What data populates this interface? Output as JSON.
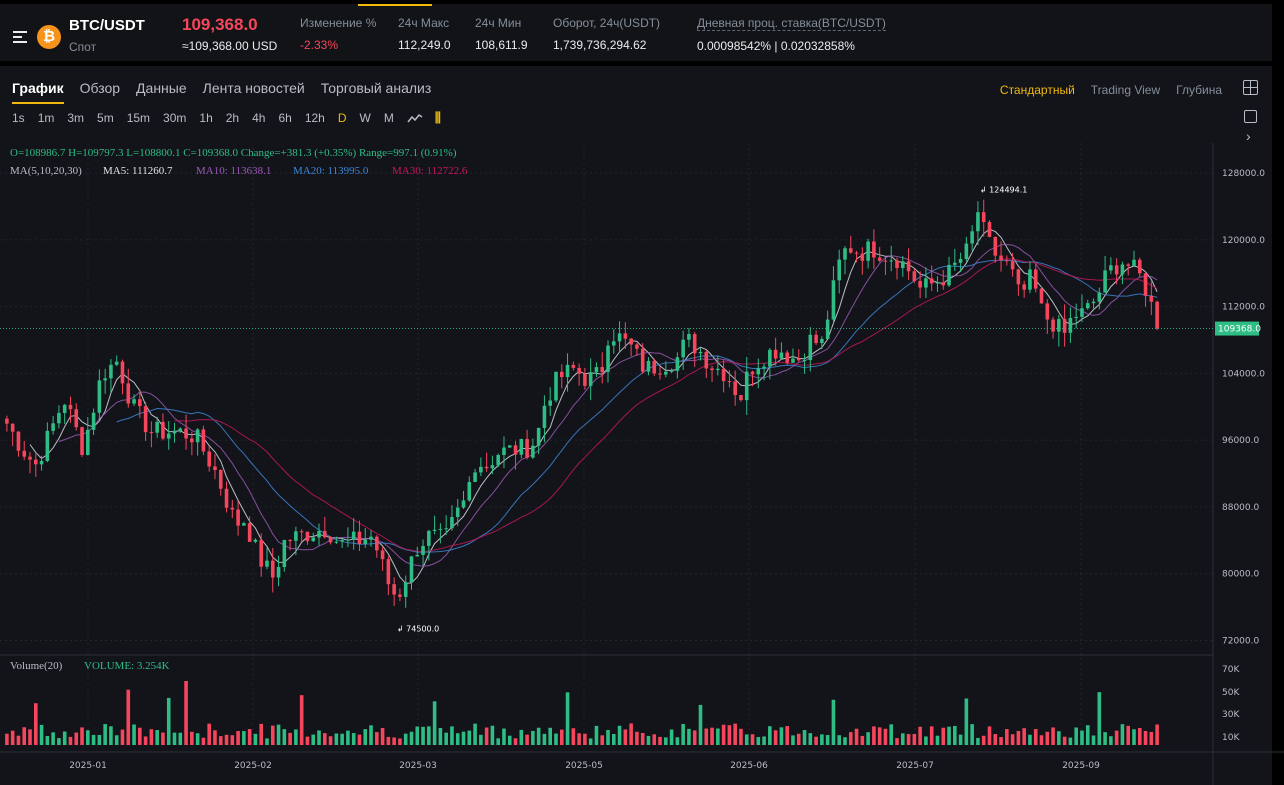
{
  "header": {
    "pair": "BTC/USDT",
    "market": "Спот",
    "last_price": "109,368.0",
    "last_price_usd": "≈109,368.00 USD",
    "stats": [
      {
        "label": "Изменение %",
        "value": "-2.33%",
        "negative": true
      },
      {
        "label": "24ч Макс",
        "value": "112,249.0"
      },
      {
        "label": "24ч Мин",
        "value": "108,611.9"
      },
      {
        "label": "Оборот, 24ч(USDT)",
        "value": "1,739,736,294.62"
      },
      {
        "label": "Дневная проц. ставка(BTC/USDT)",
        "value": "0.00098542% | 0.02032858%"
      }
    ],
    "coin_icon": "bitcoin-icon",
    "menu_icon": "menu-icon"
  },
  "tabs": [
    "График",
    "Обзор",
    "Данные",
    "Лента новостей",
    "Торговый анализ"
  ],
  "active_tab": "График",
  "views": [
    "Стандартный",
    "Trading View",
    "Глубина"
  ],
  "active_view": "Стандартный",
  "intervals": [
    "1s",
    "1m",
    "3m",
    "5m",
    "15m",
    "30m",
    "1h",
    "2h",
    "4h",
    "6h",
    "12h",
    "D",
    "W",
    "M"
  ],
  "active_interval": "D",
  "legend": {
    "ohlc": "O=108986.7   H=109797.3   L=108800.1   C=109368.0   Change=+381.3 (+0.35%)   Range=997.1 (0.91%)",
    "ma_label": "MA(5,10,20,30)",
    "ma5": "MA5: 111260.7",
    "ma10": "MA10: 113638.1",
    "ma20": "MA20: 113995.0",
    "ma30": "MA30: 112722.6",
    "volume_label": "Volume(20)",
    "volume_value": "VOLUME: 3.254K"
  },
  "colors": {
    "up": "#2ebd85",
    "down": "#f6465d",
    "ma5": "#d7dde5",
    "ma10": "#9b59b6",
    "ma20": "#3d86d8",
    "ma30": "#c2185b",
    "accent": "#f0b90b"
  },
  "chart_data": {
    "type": "candlestick",
    "symbol": "BTC/USDT",
    "interval": "1D",
    "y_axis_ticks": [
      72000,
      80000,
      88000,
      96000,
      104000,
      112000,
      120000,
      128000
    ],
    "ylim": [
      70500,
      131000
    ],
    "volume_axis_ticks": [
      "10K",
      "30K",
      "50K",
      "70K"
    ],
    "x_axis_ticks": [
      "2025-01",
      "2025-02",
      "2025-03",
      "2025-05",
      "2025-06",
      "2025-07",
      "2025-09"
    ],
    "high_marker": "124494.1",
    "low_marker": "74500.0",
    "last_price_label": "109368.0",
    "close_path": [
      [
        0,
        98000
      ],
      [
        8,
        95000
      ],
      [
        15,
        93000
      ],
      [
        22,
        96500
      ],
      [
        30,
        101000
      ],
      [
        40,
        95000
      ],
      [
        50,
        104000
      ],
      [
        58,
        105500
      ],
      [
        66,
        100000
      ],
      [
        76,
        97000
      ],
      [
        90,
        97000
      ],
      [
        99,
        96500
      ],
      [
        110,
        92000
      ],
      [
        120,
        86000
      ],
      [
        125,
        86500
      ],
      [
        132,
        82000
      ],
      [
        140,
        79500
      ],
      [
        146,
        84000
      ],
      [
        160,
        85000
      ],
      [
        168,
        85500
      ],
      [
        175,
        83500
      ],
      [
        185,
        84000
      ],
      [
        192,
        84500
      ],
      [
        200,
        79000
      ],
      [
        205,
        77000
      ],
      [
        210,
        80000
      ],
      [
        216,
        83500
      ],
      [
        222,
        84500
      ],
      [
        230,
        84000
      ],
      [
        236,
        87000
      ],
      [
        240,
        88500
      ],
      [
        246,
        93500
      ],
      [
        252,
        93000
      ],
      [
        258,
        94500
      ],
      [
        265,
        94800
      ],
      [
        272,
        95000
      ],
      [
        278,
        96000
      ],
      [
        283,
        101000
      ],
      [
        290,
        103500
      ],
      [
        298,
        104500
      ],
      [
        305,
        103200
      ],
      [
        312,
        104000
      ],
      [
        316,
        109000
      ],
      [
        320,
        108600
      ],
      [
        328,
        107000
      ],
      [
        335,
        104500
      ],
      [
        345,
        105200
      ],
      [
        352,
        105800
      ],
      [
        357,
        108000
      ],
      [
        362,
        107200
      ],
      [
        370,
        105000
      ],
      [
        378,
        104000
      ],
      [
        385,
        101000
      ],
      [
        390,
        104500
      ],
      [
        398,
        106200
      ],
      [
        405,
        107000
      ],
      [
        415,
        105500
      ],
      [
        422,
        108000
      ],
      [
        428,
        107500
      ],
      [
        432,
        112000
      ],
      [
        438,
        118000
      ],
      [
        442,
        119200
      ],
      [
        448,
        118500
      ],
      [
        455,
        119000
      ],
      [
        462,
        118200
      ],
      [
        468,
        117800
      ],
      [
        475,
        116000
      ],
      [
        480,
        114000
      ],
      [
        488,
        115000
      ],
      [
        495,
        116000
      ],
      [
        500,
        117500
      ],
      [
        505,
        118800
      ],
      [
        510,
        123500
      ],
      [
        514,
        120000
      ],
      [
        520,
        118000
      ],
      [
        527,
        116500
      ],
      [
        532,
        113000
      ],
      [
        538,
        115500
      ],
      [
        544,
        111000
      ],
      [
        550,
        110000
      ],
      [
        555,
        108500
      ],
      [
        560,
        111000
      ],
      [
        566,
        111200
      ],
      [
        572,
        113000
      ],
      [
        578,
        116000
      ],
      [
        585,
        117500
      ],
      [
        590,
        116800
      ],
      [
        596,
        115300
      ],
      [
        600,
        113000
      ],
      [
        604,
        109368
      ]
    ]
  }
}
